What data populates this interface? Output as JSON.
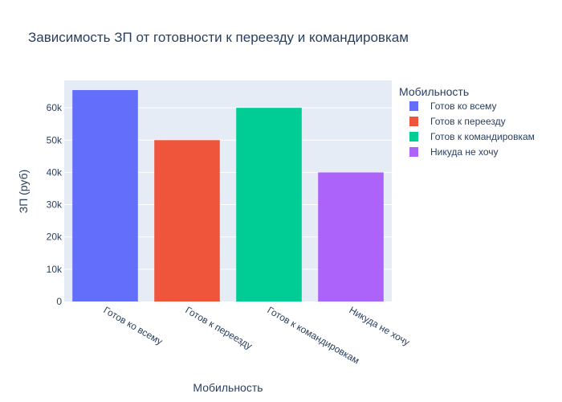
{
  "chart_data": {
    "type": "bar",
    "title": "Зависимость ЗП от готовности к переезду и командировкам",
    "xlabel": "Мобильность",
    "ylabel": "ЗП (руб)",
    "categories": [
      "Готов ко всему",
      "Готов к переезду",
      "Готов к командировкам",
      "Никуда не хочу"
    ],
    "values": [
      65500,
      50000,
      60000,
      40000
    ],
    "colors": [
      "#636efa",
      "#ef553b",
      "#00cc96",
      "#ab63fa"
    ],
    "ylim": [
      0,
      68500
    ],
    "yticks": [
      0,
      10000,
      20000,
      30000,
      40000,
      50000,
      60000
    ],
    "ytick_labels": [
      "0",
      "10k",
      "20k",
      "30k",
      "40k",
      "50k",
      "60k"
    ],
    "grid": true,
    "legend": {
      "title": "Мобильность",
      "placement": "top-right",
      "items": [
        "Готов ко всему",
        "Готов к переезду",
        "Готов к командировкам",
        "Никуда не хочу"
      ]
    },
    "plot_background": "#e5ecf6"
  }
}
